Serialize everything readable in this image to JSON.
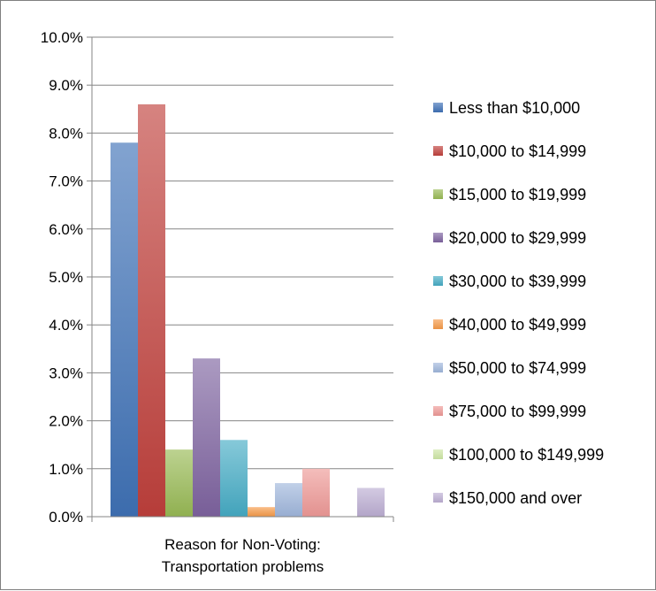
{
  "chart_data": {
    "type": "bar",
    "categories": [
      "Reason for Non-Voting:\nTransportation problems"
    ],
    "category_lines": [
      "Reason for Non-Voting:",
      "Transportation problems"
    ],
    "series": [
      {
        "name": "Less than $10,000",
        "values": [
          7.8
        ],
        "color": "#3f72b6"
      },
      {
        "name": "$10,000 to $14,999",
        "values": [
          8.6
        ],
        "color": "#c0403c"
      },
      {
        "name": "$15,000 to $19,999",
        "values": [
          1.4
        ],
        "color": "#98b954"
      },
      {
        "name": "$20,000 to $29,999",
        "values": [
          3.3
        ],
        "color": "#7e63a0"
      },
      {
        "name": "$30,000 to $39,999",
        "values": [
          1.6
        ],
        "color": "#45acc5"
      },
      {
        "name": "$40,000 to $49,999",
        "values": [
          0.2
        ],
        "color": "#f59a48"
      },
      {
        "name": "$50,000 to $74,999",
        "values": [
          0.7
        ],
        "color": "#9fb6dc"
      },
      {
        "name": "$75,000 to $99,999",
        "values": [
          1.0
        ],
        "color": "#ee9996"
      },
      {
        "name": "$100,000 to $149,999",
        "values": [
          0.0
        ],
        "color": "#cde6a4"
      },
      {
        "name": "$150,000 and over",
        "values": [
          0.6
        ],
        "color": "#bcaed3"
      }
    ],
    "yticks": [
      "0.0%",
      "1.0%",
      "2.0%",
      "3.0%",
      "4.0%",
      "5.0%",
      "6.0%",
      "7.0%",
      "8.0%",
      "9.0%",
      "10.0%"
    ],
    "ylim": [
      0,
      10
    ],
    "yunit": "%",
    "grid": true,
    "legend_position": "right",
    "title": "",
    "xlabel": "",
    "ylabel": ""
  }
}
